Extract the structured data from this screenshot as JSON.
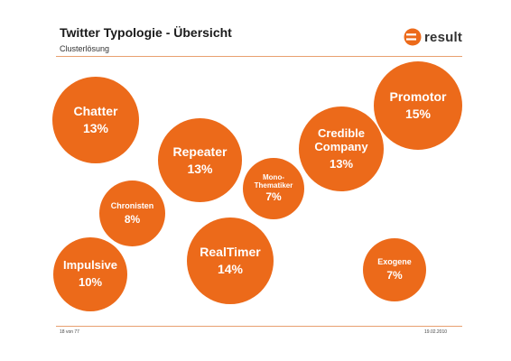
{
  "header": {
    "title": "Twitter Typologie - Übersicht",
    "subtitle": "Clusterlösung",
    "logo_text": "result"
  },
  "colors": {
    "accent": "#ec6a1a",
    "rule": "#e8a070"
  },
  "clusters": [
    {
      "label": "Chatter",
      "percent": "13%"
    },
    {
      "label": "Repeater",
      "percent": "13%"
    },
    {
      "label": "Credible\nCompany",
      "percent": "13%"
    },
    {
      "label": "Promotor",
      "percent": "15%"
    },
    {
      "label": "Chronisten",
      "percent": "8%"
    },
    {
      "label": "Mono-\nThematiker",
      "percent": "7%"
    },
    {
      "label": "Impulsive",
      "percent": "10%"
    },
    {
      "label": "RealTimer",
      "percent": "14%"
    },
    {
      "label": "Exogene",
      "percent": "7%"
    }
  ],
  "footer": {
    "page": "18 von 77",
    "date": "19.02.2010"
  }
}
